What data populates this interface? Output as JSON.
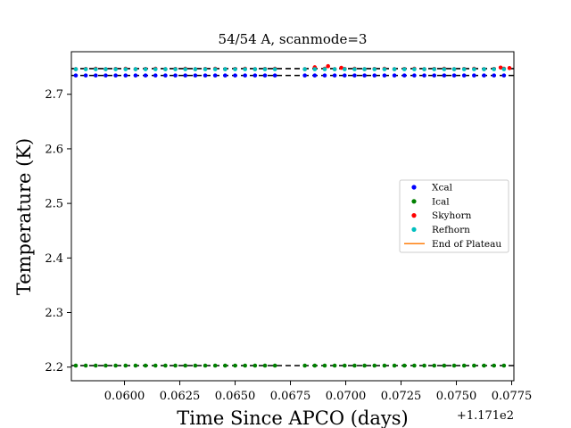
{
  "chart_data": {
    "type": "scatter",
    "title": "54/54 A, scanmode=3",
    "xlabel": "Time Since APCO (days)",
    "ylabel": "Temperature (K)",
    "x_offset_label": "+1.171e2",
    "xlim": [
      0.0576,
      0.0776
    ],
    "ylim": [
      2.175,
      2.778
    ],
    "xticks": [
      0.06,
      0.0625,
      0.065,
      0.0675,
      0.07,
      0.0725,
      0.075,
      0.0775
    ],
    "xtick_labels": [
      "0.0600",
      "0.0625",
      "0.0650",
      "0.0675",
      "0.0700",
      "0.0725",
      "0.0750",
      "0.0775"
    ],
    "yticks": [
      2.2,
      2.3,
      2.4,
      2.5,
      2.6,
      2.7
    ],
    "ytick_labels": [
      "2.2",
      "2.3",
      "2.4",
      "2.5",
      "2.6",
      "2.7"
    ],
    "legend_position": "center-right",
    "time_range": [
      0.0576,
      0.0776
    ],
    "gap": [
      0.067,
      0.0679
    ],
    "sample_step": 0.00045,
    "series": [
      {
        "name": "Xcal",
        "color": "#0000ff",
        "level": 2.7345,
        "marker": "dot"
      },
      {
        "name": "Ical",
        "color": "#008000",
        "level": 2.2028,
        "marker": "dot"
      },
      {
        "name": "Skyhorn",
        "color": "#ff0000",
        "level": 2.7465,
        "marker": "dot",
        "extra_points": [
          [
            0.0686,
            2.7495
          ],
          [
            0.0692,
            2.7515
          ],
          [
            0.0698,
            2.7485
          ],
          [
            0.077,
            2.749
          ],
          [
            0.0774,
            2.748
          ]
        ]
      },
      {
        "name": "Refhorn",
        "color": "#00bfbf",
        "level": 2.746,
        "marker": "dot"
      },
      {
        "name": "End of Plateau",
        "color": "#ff7f0e",
        "marker": "line"
      }
    ],
    "dashed_lines": [
      {
        "level": 2.747,
        "color": "#000000"
      },
      {
        "level": 2.7345,
        "color": "#000000"
      },
      {
        "level": 2.2028,
        "color": "#000000"
      }
    ]
  }
}
